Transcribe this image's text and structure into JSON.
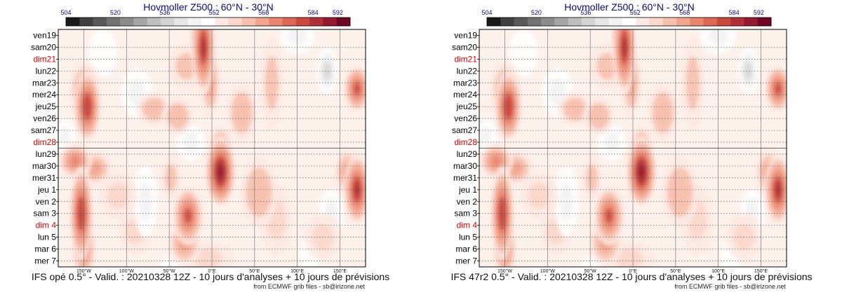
{
  "chart_data": [
    {
      "type": "heatmap",
      "title": "Hovmoller Z500 : 60°N - 30°N",
      "colorbar": {
        "ticks": [
          "504",
          "520",
          "536",
          "552",
          "568",
          "584",
          "592"
        ],
        "tick_values": [
          504,
          520,
          536,
          552,
          568,
          584,
          592
        ],
        "range": [
          504,
          596
        ],
        "colors": [
          "#1a1a1a",
          "#404040",
          "#595959",
          "#737373",
          "#8c8c8c",
          "#a6a6a6",
          "#bfbfbf",
          "#d4d4d4",
          "#e6e6e6",
          "#f2f2f2",
          "#ffffff",
          "#fde9e3",
          "#fbd6ca",
          "#f7c0ae",
          "#f2a48f",
          "#ea8670",
          "#dd6654",
          "#c9493f",
          "#b0303a",
          "#931a31",
          "#700626"
        ]
      },
      "y_labels": [
        {
          "text": "ven19",
          "color": "#000000"
        },
        {
          "text": "sam20",
          "color": "#000000"
        },
        {
          "text": "dim21",
          "color": "#dd0000"
        },
        {
          "text": "lun22",
          "color": "#000000"
        },
        {
          "text": "mar23",
          "color": "#000000"
        },
        {
          "text": "mer24",
          "color": "#000000"
        },
        {
          "text": "jeu25",
          "color": "#000000"
        },
        {
          "text": "ven26",
          "color": "#000000"
        },
        {
          "text": "sam27",
          "color": "#000000"
        },
        {
          "text": "dim28",
          "color": "#dd0000"
        },
        {
          "text": "lun29",
          "color": "#000000"
        },
        {
          "text": "mar30",
          "color": "#000000"
        },
        {
          "text": "mer31",
          "color": "#000000"
        },
        {
          "text": "jeu 1",
          "color": "#000000"
        },
        {
          "text": "ven 2",
          "color": "#000000"
        },
        {
          "text": "sam 3",
          "color": "#000000"
        },
        {
          "text": "dim 4",
          "color": "#dd0000"
        },
        {
          "text": "lun 5",
          "color": "#000000"
        },
        {
          "text": "mar 6",
          "color": "#000000"
        },
        {
          "text": "mer 7",
          "color": "#000000"
        }
      ],
      "x_ticks": [
        {
          "text": "150°W",
          "lon": -150
        },
        {
          "text": "100°W",
          "lon": -100
        },
        {
          "text": "50°W",
          "lon": -50
        },
        {
          "text": "0°E",
          "lon": 0
        },
        {
          "text": "50°E",
          "lon": 50
        },
        {
          "text": "100°E",
          "lon": 100
        },
        {
          "text": "150°E",
          "lon": 150
        }
      ],
      "x_range": [
        -180,
        180
      ],
      "analysis_end": "dim28",
      "blobs": [
        {
          "lon": -10,
          "day": 1,
          "value": 584,
          "rx": 14,
          "ry": 4
        },
        {
          "lon": -15,
          "day": 0,
          "value": 576,
          "rx": 10,
          "ry": 2
        },
        {
          "lon": -2,
          "day": 4,
          "value": 566,
          "rx": 12,
          "ry": 3
        },
        {
          "lon": -146,
          "day": 6,
          "value": 582,
          "rx": 16,
          "ry": 3
        },
        {
          "lon": -150,
          "day": 4.6,
          "value": 568,
          "rx": 18,
          "ry": 2.5
        },
        {
          "lon": -68,
          "day": 6.2,
          "value": 564,
          "rx": 20,
          "ry": 1.4
        },
        {
          "lon": -40,
          "day": 6.8,
          "value": 564,
          "rx": 18,
          "ry": 1.6
        },
        {
          "lon": -30,
          "day": 2.6,
          "value": 562,
          "rx": 22,
          "ry": 2
        },
        {
          "lon": 35,
          "day": 6.5,
          "value": 563,
          "rx": 18,
          "ry": 2.5
        },
        {
          "lon": 70,
          "day": 4,
          "value": 562,
          "rx": 14,
          "ry": 4
        },
        {
          "lon": 170,
          "day": 4.5,
          "value": 580,
          "rx": 16,
          "ry": 2
        },
        {
          "lon": -160,
          "day": 10.6,
          "value": 574,
          "rx": 20,
          "ry": 1.5
        },
        {
          "lon": -138,
          "day": 11.2,
          "value": 566,
          "rx": 22,
          "ry": 1.5
        },
        {
          "lon": 10,
          "day": 11.5,
          "value": 588,
          "rx": 18,
          "ry": 3
        },
        {
          "lon": 10,
          "day": 9.5,
          "value": 566,
          "rx": 14,
          "ry": 2
        },
        {
          "lon": -153,
          "day": 15,
          "value": 582,
          "rx": 14,
          "ry": 4
        },
        {
          "lon": -150,
          "day": 18,
          "value": 570,
          "rx": 14,
          "ry": 2.5
        },
        {
          "lon": -28,
          "day": 15.2,
          "value": 580,
          "rx": 18,
          "ry": 2.5
        },
        {
          "lon": -32,
          "day": 17.5,
          "value": 566,
          "rx": 20,
          "ry": 2
        },
        {
          "lon": -48,
          "day": 12,
          "value": 562,
          "rx": 12,
          "ry": 2
        },
        {
          "lon": 55,
          "day": 13.2,
          "value": 564,
          "rx": 22,
          "ry": 3
        },
        {
          "lon": 75,
          "day": 15.5,
          "value": 560,
          "rx": 20,
          "ry": 3
        },
        {
          "lon": 170,
          "day": 13,
          "value": 584,
          "rx": 16,
          "ry": 3
        },
        {
          "lon": 160,
          "day": 11.5,
          "value": 568,
          "rx": 18,
          "ry": 2
        },
        {
          "lon": -110,
          "day": 13.5,
          "value": 560,
          "rx": 22,
          "ry": 2
        },
        {
          "lon": -90,
          "day": 16.5,
          "value": 558,
          "rx": 20,
          "ry": 2
        },
        {
          "lon": 130,
          "day": 17,
          "value": 560,
          "rx": 22,
          "ry": 2
        },
        {
          "lon": -5,
          "day": 18.8,
          "value": 558,
          "rx": 30,
          "ry": 1.5
        },
        {
          "lon": 135,
          "day": 3,
          "value": 538,
          "rx": 12,
          "ry": 2
        },
        {
          "lon": 100,
          "day": 0,
          "value": 546,
          "rx": 20,
          "ry": 1.5
        },
        {
          "lon": -88,
          "day": 4.8,
          "value": 544,
          "rx": 18,
          "ry": 2
        },
        {
          "lon": -78,
          "day": 14,
          "value": 546,
          "rx": 14,
          "ry": 3
        },
        {
          "lon": -25,
          "day": 9,
          "value": 546,
          "rx": 16,
          "ry": 1.5
        },
        {
          "lon": 140,
          "day": 15,
          "value": 546,
          "rx": 14,
          "ry": 2
        },
        {
          "lon": -172,
          "day": 8.5,
          "value": 546,
          "rx": 12,
          "ry": 1.5
        },
        {
          "lon": -128,
          "day": 1.5,
          "value": 548,
          "rx": 16,
          "ry": 2
        },
        {
          "lon": 115,
          "day": 18.5,
          "value": 548,
          "rx": 12,
          "ry": 1.5
        },
        {
          "lon": -40,
          "day": 19.5,
          "value": 548,
          "rx": 20,
          "ry": 1
        }
      ]
    }
  ],
  "panels": [
    {
      "footer": "IFS opé 0.5° - Valid. : 20210328 12Z - 10 jours d'analyses + 10 jours de prévisions",
      "source": "from ECMWF grib files - sb@irizone.net"
    },
    {
      "footer": "IFS 47r2 0.5° - Valid. : 20210328 12Z - 10 jours d'analyses + 10 jours de prévisions",
      "source": "from ECMWF grib files - sb@irizone.net"
    }
  ]
}
